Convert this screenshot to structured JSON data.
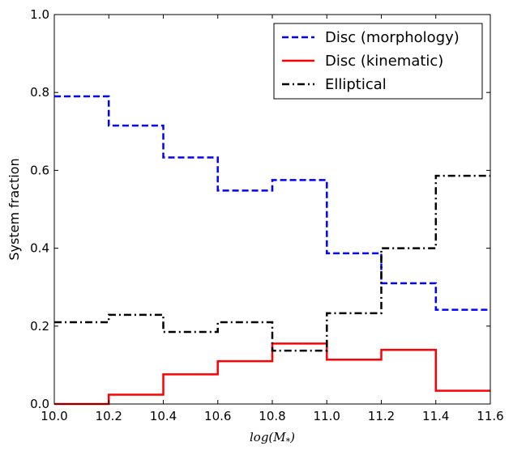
{
  "chart_data": {
    "type": "line",
    "drawstyle": "steps-post",
    "x_edges": [
      10.0,
      10.2,
      10.4,
      10.6,
      10.8,
      11.0,
      11.2,
      11.4,
      11.6
    ],
    "xlim": [
      10.0,
      11.6
    ],
    "ylim": [
      0.0,
      1.0
    ],
    "xticks": [
      "10.0",
      "10.2",
      "10.4",
      "10.6",
      "10.8",
      "11.0",
      "11.2",
      "11.4",
      "11.6"
    ],
    "yticks": [
      "0.0",
      "0.2",
      "0.4",
      "0.6",
      "0.8",
      "1.0"
    ],
    "xlabel": "log(M*)",
    "ylabel": "System fraction",
    "legend_position": "top-right",
    "series": [
      {
        "name": "Disc (morphology)",
        "color": "#0000ff",
        "linestyle": "dashed",
        "values": [
          0.79,
          0.715,
          0.633,
          0.548,
          0.575,
          0.387,
          0.31,
          0.242
        ]
      },
      {
        "name": "Disc (kinematic)",
        "color": "#ff0000",
        "linestyle": "solid",
        "values": [
          0.0,
          0.024,
          0.076,
          0.11,
          0.155,
          0.114,
          0.139,
          0.034
        ]
      },
      {
        "name": "Elliptical",
        "color": "#000000",
        "linestyle": "dashdot",
        "values": [
          0.21,
          0.229,
          0.185,
          0.21,
          0.137,
          0.233,
          0.4,
          0.586
        ]
      }
    ]
  }
}
